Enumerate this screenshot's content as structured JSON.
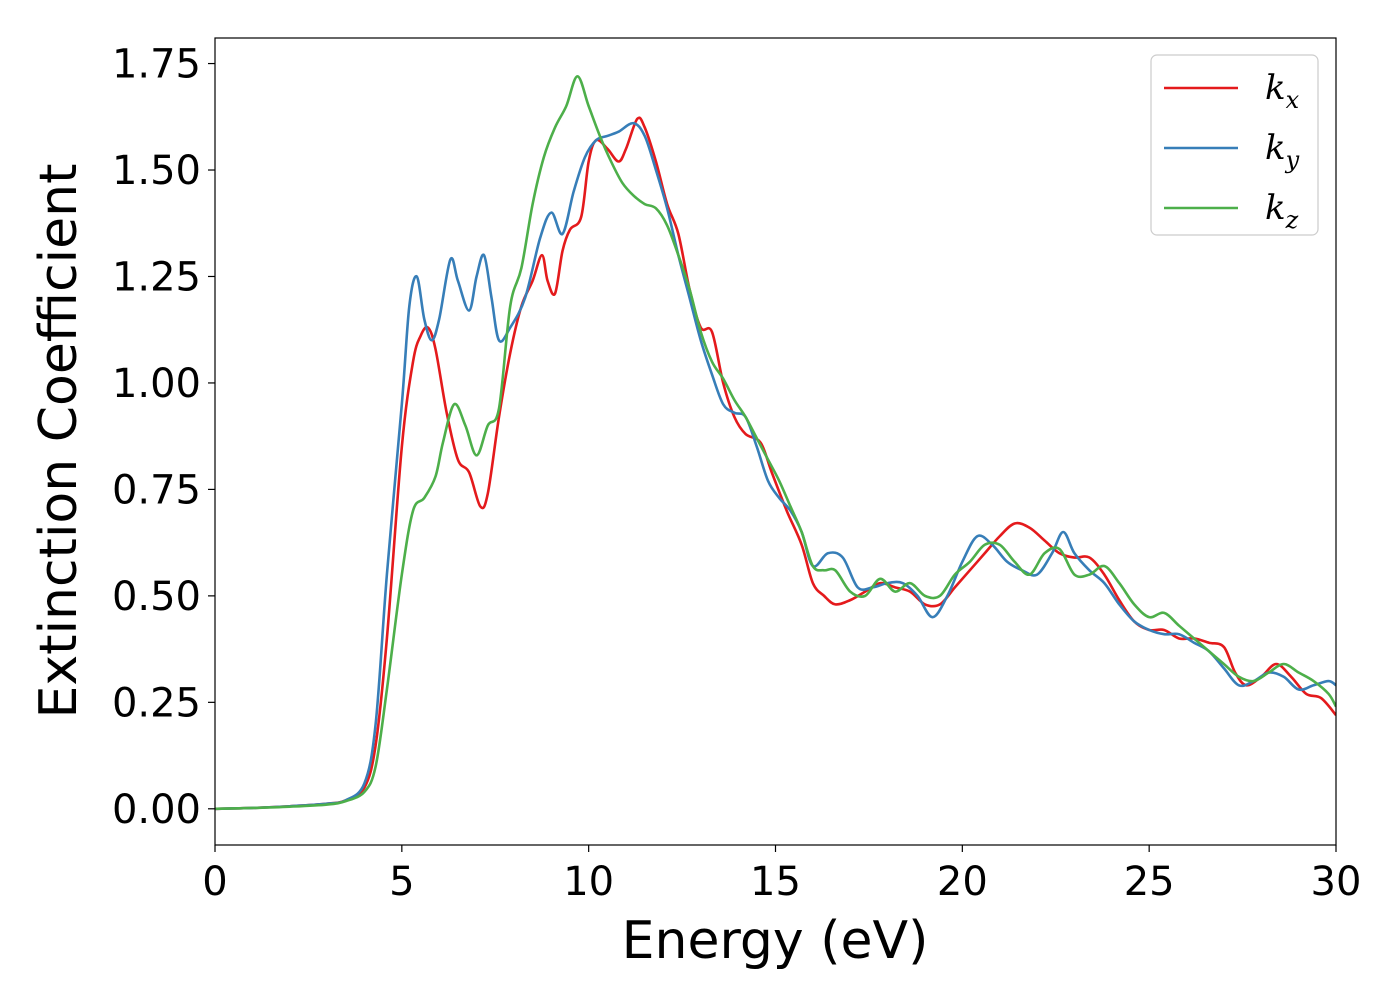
{
  "chart_data": {
    "type": "line",
    "xlabel": "Energy (eV)",
    "ylabel": "Extinction Coefficient",
    "xlim": [
      0,
      30
    ],
    "ylim": [
      -0.085,
      1.81
    ],
    "x_ticks": [
      "0",
      "5",
      "10",
      "15",
      "20",
      "25",
      "30"
    ],
    "y_ticks": [
      "0.00",
      "0.25",
      "0.50",
      "0.75",
      "1.00",
      "1.25",
      "1.50",
      "1.75"
    ],
    "grid": false,
    "legend_position": "top-right",
    "series": [
      {
        "name": "k_x",
        "legend_base": "k",
        "legend_sub": "x",
        "color": "#e41a1c",
        "points": [
          [
            0,
            0.0
          ],
          [
            1,
            0.002
          ],
          [
            2,
            0.006
          ],
          [
            3,
            0.012
          ],
          [
            3.5,
            0.02
          ],
          [
            4,
            0.05
          ],
          [
            4.3,
            0.15
          ],
          [
            4.6,
            0.4
          ],
          [
            5,
            0.85
          ],
          [
            5.3,
            1.05
          ],
          [
            5.5,
            1.11
          ],
          [
            5.7,
            1.13
          ],
          [
            5.9,
            1.08
          ],
          [
            6.2,
            0.93
          ],
          [
            6.5,
            0.82
          ],
          [
            6.8,
            0.79
          ],
          [
            7.1,
            0.71
          ],
          [
            7.3,
            0.74
          ],
          [
            7.6,
            0.92
          ],
          [
            7.9,
            1.07
          ],
          [
            8.2,
            1.18
          ],
          [
            8.5,
            1.24
          ],
          [
            8.75,
            1.3
          ],
          [
            8.9,
            1.24
          ],
          [
            9.1,
            1.21
          ],
          [
            9.3,
            1.31
          ],
          [
            9.5,
            1.36
          ],
          [
            9.8,
            1.39
          ],
          [
            10.0,
            1.52
          ],
          [
            10.2,
            1.57
          ],
          [
            10.5,
            1.55
          ],
          [
            10.8,
            1.52
          ],
          [
            11.0,
            1.55
          ],
          [
            11.3,
            1.62
          ],
          [
            11.5,
            1.6
          ],
          [
            11.8,
            1.52
          ],
          [
            12.1,
            1.42
          ],
          [
            12.4,
            1.35
          ],
          [
            12.7,
            1.22
          ],
          [
            13.0,
            1.13
          ],
          [
            13.3,
            1.12
          ],
          [
            13.6,
            1.0
          ],
          [
            13.9,
            0.92
          ],
          [
            14.2,
            0.88
          ],
          [
            14.6,
            0.86
          ],
          [
            14.9,
            0.79
          ],
          [
            15.3,
            0.7
          ],
          [
            15.7,
            0.62
          ],
          [
            16.0,
            0.53
          ],
          [
            16.3,
            0.5
          ],
          [
            16.6,
            0.48
          ],
          [
            17.0,
            0.49
          ],
          [
            17.4,
            0.51
          ],
          [
            17.8,
            0.53
          ],
          [
            18.2,
            0.52
          ],
          [
            18.6,
            0.51
          ],
          [
            19.0,
            0.48
          ],
          [
            19.4,
            0.48
          ],
          [
            19.8,
            0.52
          ],
          [
            20.2,
            0.56
          ],
          [
            20.6,
            0.6
          ],
          [
            21.0,
            0.64
          ],
          [
            21.4,
            0.67
          ],
          [
            21.8,
            0.66
          ],
          [
            22.2,
            0.63
          ],
          [
            22.6,
            0.6
          ],
          [
            23.0,
            0.59
          ],
          [
            23.4,
            0.59
          ],
          [
            23.8,
            0.55
          ],
          [
            24.2,
            0.49
          ],
          [
            24.6,
            0.44
          ],
          [
            25.0,
            0.42
          ],
          [
            25.4,
            0.42
          ],
          [
            25.8,
            0.4
          ],
          [
            26.2,
            0.4
          ],
          [
            26.6,
            0.39
          ],
          [
            27.0,
            0.38
          ],
          [
            27.3,
            0.32
          ],
          [
            27.6,
            0.29
          ],
          [
            28.0,
            0.31
          ],
          [
            28.4,
            0.34
          ],
          [
            28.8,
            0.31
          ],
          [
            29.2,
            0.27
          ],
          [
            29.6,
            0.26
          ],
          [
            30.0,
            0.22
          ]
        ]
      },
      {
        "name": "k_y",
        "legend_base": "k",
        "legend_sub": "y",
        "color": "#377eb8",
        "points": [
          [
            0,
            0.0
          ],
          [
            1,
            0.002
          ],
          [
            2,
            0.006
          ],
          [
            3,
            0.012
          ],
          [
            3.5,
            0.02
          ],
          [
            4,
            0.06
          ],
          [
            4.3,
            0.2
          ],
          [
            4.6,
            0.55
          ],
          [
            5,
            0.95
          ],
          [
            5.2,
            1.18
          ],
          [
            5.4,
            1.25
          ],
          [
            5.6,
            1.15
          ],
          [
            5.8,
            1.1
          ],
          [
            6.0,
            1.15
          ],
          [
            6.3,
            1.29
          ],
          [
            6.5,
            1.24
          ],
          [
            6.8,
            1.17
          ],
          [
            7.0,
            1.25
          ],
          [
            7.2,
            1.3
          ],
          [
            7.4,
            1.2
          ],
          [
            7.6,
            1.1
          ],
          [
            7.9,
            1.13
          ],
          [
            8.3,
            1.2
          ],
          [
            8.7,
            1.34
          ],
          [
            9.0,
            1.4
          ],
          [
            9.3,
            1.35
          ],
          [
            9.6,
            1.45
          ],
          [
            9.9,
            1.53
          ],
          [
            10.2,
            1.57
          ],
          [
            10.5,
            1.58
          ],
          [
            10.8,
            1.59
          ],
          [
            11.2,
            1.61
          ],
          [
            11.5,
            1.58
          ],
          [
            11.8,
            1.5
          ],
          [
            12.1,
            1.41
          ],
          [
            12.4,
            1.3
          ],
          [
            12.7,
            1.2
          ],
          [
            13.0,
            1.1
          ],
          [
            13.3,
            1.02
          ],
          [
            13.6,
            0.95
          ],
          [
            13.9,
            0.93
          ],
          [
            14.2,
            0.92
          ],
          [
            14.5,
            0.85
          ],
          [
            14.8,
            0.77
          ],
          [
            15.1,
            0.73
          ],
          [
            15.4,
            0.7
          ],
          [
            15.7,
            0.65
          ],
          [
            16.0,
            0.57
          ],
          [
            16.4,
            0.6
          ],
          [
            16.8,
            0.59
          ],
          [
            17.2,
            0.52
          ],
          [
            17.6,
            0.52
          ],
          [
            18.0,
            0.53
          ],
          [
            18.4,
            0.53
          ],
          [
            18.8,
            0.5
          ],
          [
            19.2,
            0.45
          ],
          [
            19.6,
            0.5
          ],
          [
            20.0,
            0.58
          ],
          [
            20.4,
            0.64
          ],
          [
            20.8,
            0.62
          ],
          [
            21.2,
            0.58
          ],
          [
            21.6,
            0.56
          ],
          [
            22.0,
            0.55
          ],
          [
            22.4,
            0.6
          ],
          [
            22.7,
            0.65
          ],
          [
            23.0,
            0.6
          ],
          [
            23.4,
            0.56
          ],
          [
            23.8,
            0.53
          ],
          [
            24.2,
            0.48
          ],
          [
            24.6,
            0.44
          ],
          [
            25.0,
            0.42
          ],
          [
            25.4,
            0.41
          ],
          [
            25.8,
            0.41
          ],
          [
            26.2,
            0.39
          ],
          [
            26.6,
            0.37
          ],
          [
            27.0,
            0.33
          ],
          [
            27.4,
            0.29
          ],
          [
            27.8,
            0.3
          ],
          [
            28.2,
            0.32
          ],
          [
            28.6,
            0.31
          ],
          [
            29.0,
            0.28
          ],
          [
            29.4,
            0.29
          ],
          [
            29.8,
            0.3
          ],
          [
            30.0,
            0.29
          ]
        ]
      },
      {
        "name": "k_z",
        "legend_base": "k",
        "legend_sub": "z",
        "color": "#4daf4a",
        "points": [
          [
            0,
            0.0
          ],
          [
            1,
            0.002
          ],
          [
            2,
            0.005
          ],
          [
            3,
            0.01
          ],
          [
            3.5,
            0.018
          ],
          [
            4,
            0.04
          ],
          [
            4.3,
            0.1
          ],
          [
            4.6,
            0.28
          ],
          [
            5.0,
            0.55
          ],
          [
            5.3,
            0.7
          ],
          [
            5.6,
            0.73
          ],
          [
            5.9,
            0.78
          ],
          [
            6.1,
            0.86
          ],
          [
            6.4,
            0.95
          ],
          [
            6.7,
            0.9
          ],
          [
            7.0,
            0.83
          ],
          [
            7.3,
            0.9
          ],
          [
            7.6,
            0.94
          ],
          [
            7.9,
            1.18
          ],
          [
            8.2,
            1.27
          ],
          [
            8.5,
            1.42
          ],
          [
            8.8,
            1.53
          ],
          [
            9.1,
            1.6
          ],
          [
            9.4,
            1.65
          ],
          [
            9.7,
            1.72
          ],
          [
            10.0,
            1.65
          ],
          [
            10.3,
            1.58
          ],
          [
            10.6,
            1.52
          ],
          [
            10.9,
            1.47
          ],
          [
            11.2,
            1.44
          ],
          [
            11.5,
            1.42
          ],
          [
            11.8,
            1.41
          ],
          [
            12.1,
            1.37
          ],
          [
            12.4,
            1.3
          ],
          [
            12.7,
            1.22
          ],
          [
            13.0,
            1.12
          ],
          [
            13.3,
            1.05
          ],
          [
            13.6,
            1.01
          ],
          [
            13.9,
            0.96
          ],
          [
            14.2,
            0.92
          ],
          [
            14.5,
            0.87
          ],
          [
            14.8,
            0.82
          ],
          [
            15.1,
            0.77
          ],
          [
            15.4,
            0.71
          ],
          [
            15.7,
            0.65
          ],
          [
            16.0,
            0.57
          ],
          [
            16.3,
            0.56
          ],
          [
            16.6,
            0.56
          ],
          [
            17.0,
            0.51
          ],
          [
            17.4,
            0.5
          ],
          [
            17.8,
            0.54
          ],
          [
            18.2,
            0.51
          ],
          [
            18.6,
            0.53
          ],
          [
            19.0,
            0.5
          ],
          [
            19.4,
            0.5
          ],
          [
            19.8,
            0.55
          ],
          [
            20.2,
            0.58
          ],
          [
            20.6,
            0.62
          ],
          [
            21.0,
            0.62
          ],
          [
            21.4,
            0.58
          ],
          [
            21.8,
            0.55
          ],
          [
            22.2,
            0.6
          ],
          [
            22.6,
            0.61
          ],
          [
            23.0,
            0.55
          ],
          [
            23.4,
            0.55
          ],
          [
            23.8,
            0.57
          ],
          [
            24.2,
            0.53
          ],
          [
            24.6,
            0.48
          ],
          [
            25.0,
            0.45
          ],
          [
            25.4,
            0.46
          ],
          [
            25.8,
            0.43
          ],
          [
            26.2,
            0.4
          ],
          [
            26.6,
            0.37
          ],
          [
            27.0,
            0.34
          ],
          [
            27.4,
            0.31
          ],
          [
            27.8,
            0.3
          ],
          [
            28.2,
            0.32
          ],
          [
            28.6,
            0.34
          ],
          [
            29.0,
            0.32
          ],
          [
            29.4,
            0.3
          ],
          [
            29.8,
            0.27
          ],
          [
            30.0,
            0.24
          ]
        ]
      }
    ]
  }
}
